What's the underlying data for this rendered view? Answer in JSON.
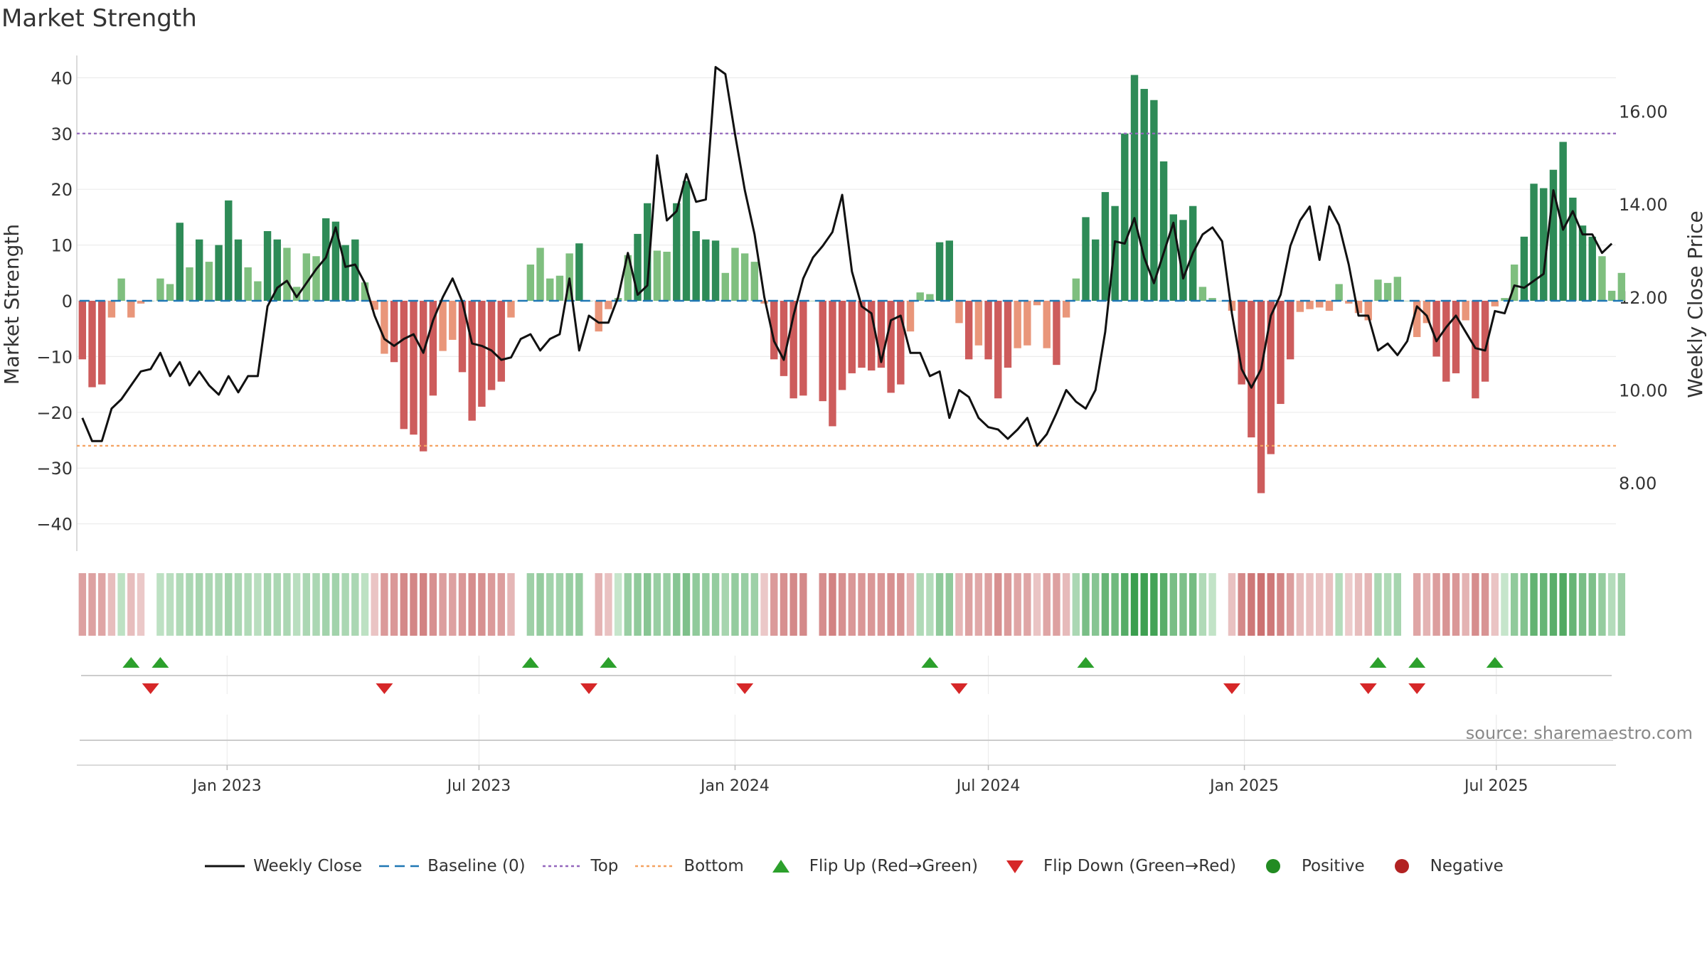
{
  "title": "Market Strength",
  "colors": {
    "green_dark": "#2e8b57",
    "green_light": "#7fbf7f",
    "red_dark": "#cd5c5c",
    "red_light": "#e9967a",
    "close": "#111111",
    "baseline": "#1f77b4",
    "top": "#9467bd",
    "bottom": "#f4a261",
    "flip_up": "#2ca02c",
    "flip_down": "#d62728",
    "positive": "#228b22",
    "negative": "#b22222"
  },
  "chart_data": {
    "type": "bar+line",
    "title": "Market Strength",
    "x_start": "2022-09-19",
    "x_step_days": 7,
    "xlim": [
      "2022-09-15",
      "2025-09-25"
    ],
    "x_ticks": [
      "2023-01-01",
      "2023-07-01",
      "2024-01-01",
      "2024-07-01",
      "2025-01-01",
      "2025-07-01"
    ],
    "x_tick_labels": [
      "Jan 2023",
      "Jul 2023",
      "Jan 2024",
      "Jul 2024",
      "Jan 2025",
      "Jul 2025"
    ],
    "y_left": {
      "label": "Market Strength",
      "lim": [
        -44,
        44
      ],
      "ticks": [
        -40,
        -30,
        -20,
        -10,
        0,
        10,
        20,
        30,
        40
      ]
    },
    "y_right": {
      "label": "Weekly Close Price",
      "lim": [
        6.64,
        17.2
      ],
      "ticks": [
        8,
        10,
        12,
        14,
        16
      ],
      "tick_labels": [
        "8.00",
        "10.00",
        "12.00",
        "14.00",
        "16.00"
      ]
    },
    "top_level": 30,
    "bottom_level": -26,
    "baseline_level": 0,
    "strength": [
      -10.5,
      -15.5,
      -15,
      -3,
      4,
      -3,
      -0.5,
      0,
      4,
      3,
      14,
      6,
      11,
      7,
      10,
      18,
      11,
      6,
      3.5,
      12.5,
      11,
      9.5,
      2.5,
      8.5,
      8,
      14.8,
      14.2,
      10,
      11,
      3.3,
      -1.6,
      -9.5,
      -11,
      -23,
      -24,
      -27,
      -17,
      -9,
      -7,
      -12.8,
      -21.5,
      -19,
      -16,
      -14.5,
      -3,
      0,
      6.5,
      9.5,
      4,
      4.5,
      8.5,
      10.3,
      0,
      -5.5,
      -1.5,
      0.5,
      8.2,
      12,
      17.5,
      9,
      8.8,
      17.5,
      21.5,
      12.5,
      11,
      10.8,
      5,
      9.5,
      8.5,
      7,
      -0.5,
      -10.5,
      -13.5,
      -17.5,
      -17,
      0,
      -18,
      -22.5,
      -16,
      -13,
      -12,
      -12.5,
      -12,
      -16.5,
      -15,
      -5.5,
      1.5,
      1.2,
      10.5,
      10.8,
      -4,
      -10.5,
      -8,
      -10.5,
      -17.5,
      -12,
      -8.5,
      -8,
      -0.8,
      -8.5,
      -11.5,
      -3,
      4,
      15,
      11,
      19.5,
      17,
      30,
      40.5,
      38,
      36,
      25,
      15.5,
      14.5,
      17,
      2.5,
      0.5,
      0,
      -1.8,
      -15,
      -24.5,
      -34.5,
      -27.5,
      -18.5,
      -10.5,
      -2,
      -1.5,
      -1.2,
      -1.8,
      3,
      -0.5,
      -2.2,
      -3.5,
      3.8,
      3.2,
      4.3,
      0,
      -6.5,
      -4,
      -10,
      -14.5,
      -13,
      -3.5,
      -17.5,
      -14.5,
      -1,
      0.5,
      6.5,
      11.5,
      21,
      20.2,
      23.5,
      28.5,
      18.5,
      13.5,
      11.5,
      8,
      1.8,
      5
    ],
    "close": [
      9.4,
      8.9,
      8.9,
      9.6,
      9.8,
      10.1,
      10.4,
      10.45,
      10.8,
      10.3,
      10.6,
      10.1,
      10.4,
      10.1,
      9.9,
      10.3,
      9.95,
      10.3,
      10.3,
      11.8,
      12.2,
      12.35,
      12.0,
      12.3,
      12.6,
      12.85,
      13.5,
      12.65,
      12.7,
      12.3,
      11.6,
      11.1,
      10.95,
      11.1,
      11.2,
      10.8,
      11.5,
      12.0,
      12.4,
      11.9,
      11.0,
      10.95,
      10.85,
      10.65,
      10.7,
      11.1,
      11.2,
      10.85,
      11.1,
      11.2,
      12.4,
      10.85,
      11.6,
      11.45,
      11.45,
      12.0,
      12.95,
      12.05,
      12.25,
      15.05,
      13.65,
      13.85,
      14.65,
      14.05,
      14.1,
      16.95,
      16.8,
      15.5,
      14.3,
      13.35,
      12.0,
      11.05,
      10.65,
      11.6,
      12.4,
      12.85,
      13.1,
      13.4,
      14.2,
      12.55,
      11.8,
      11.65,
      10.6,
      11.5,
      11.6,
      10.8,
      10.8,
      10.3,
      10.4,
      9.4,
      10.0,
      9.85,
      9.4,
      9.2,
      9.15,
      8.95,
      9.15,
      9.4,
      8.8,
      9.05,
      9.5,
      10.0,
      9.75,
      9.6,
      10.0,
      11.25,
      13.2,
      13.15,
      13.7,
      12.85,
      12.3,
      12.95,
      13.6,
      12.4,
      12.95,
      13.35,
      13.5,
      13.2,
      11.65,
      10.45,
      10.05,
      10.45,
      11.6,
      12.05,
      13.1,
      13.65,
      13.95,
      12.8,
      13.95,
      13.55,
      12.7,
      11.6,
      11.6,
      10.85,
      11.0,
      10.75,
      11.05,
      11.8,
      11.6,
      11.05,
      11.35,
      11.6,
      11.25,
      10.9,
      10.85,
      11.7,
      11.65,
      12.25,
      12.2,
      12.35,
      12.5,
      14.3,
      13.45,
      13.85,
      13.35,
      13.35,
      12.95,
      13.15
    ],
    "band_strength": [
      -14,
      -14,
      -13,
      -6,
      5,
      -6,
      -3,
      0,
      5,
      6,
      8,
      9,
      10,
      9,
      9,
      11,
      9,
      8,
      6,
      10,
      9,
      9,
      6,
      9,
      9,
      11,
      11,
      9,
      9,
      5,
      -4,
      -16,
      -17,
      -21,
      -22,
      -23,
      -19,
      -15,
      -14,
      -17,
      -20,
      -19,
      -16,
      -15,
      -8,
      0,
      12,
      14,
      11,
      11,
      13,
      14,
      0,
      -9,
      -5,
      3,
      13,
      15,
      17,
      13,
      13,
      17,
      19,
      15,
      14,
      14,
      10,
      14,
      13,
      12,
      -3,
      -16,
      -19,
      -21,
      -21,
      0,
      -20,
      -23,
      -19,
      -17,
      -17,
      -17,
      -17,
      -19,
      -18,
      -9,
      8,
      7,
      15,
      15,
      -8,
      -14,
      -12,
      -14,
      -19,
      -16,
      -13,
      -13,
      -4,
      -13,
      -14,
      -7,
      9,
      20,
      17,
      24,
      22,
      28,
      34,
      33,
      32,
      27,
      20,
      19,
      21,
      8,
      4,
      0,
      -5,
      -21,
      -26,
      -28,
      -26,
      -22,
      -15,
      -6,
      -5,
      -4,
      -5,
      7,
      -2,
      -6,
      -8,
      9,
      8,
      10,
      0,
      -13,
      -9,
      -15,
      -18,
      -17,
      -9,
      -20,
      -18,
      -4,
      3,
      15,
      18,
      25,
      24,
      27,
      29,
      24,
      20,
      19,
      14,
      7,
      12
    ],
    "flip_up_dates": [
      "2022-10-24",
      "2022-11-14",
      "2023-08-07",
      "2023-10-02",
      "2024-05-20",
      "2024-09-09",
      "2025-04-07",
      "2025-05-05",
      "2025-06-30"
    ],
    "flip_down_dates": [
      "2022-11-07",
      "2023-04-24",
      "2023-09-18",
      "2024-01-08",
      "2024-06-10",
      "2024-12-23",
      "2025-03-31",
      "2025-05-05"
    ],
    "series": [
      {
        "name": "Market Strength",
        "kind": "bar"
      },
      {
        "name": "Weekly Close",
        "kind": "line"
      },
      {
        "name": "Baseline (0)",
        "kind": "dash"
      },
      {
        "name": "Top",
        "kind": "dot"
      },
      {
        "name": "Bottom",
        "kind": "dot"
      }
    ]
  },
  "source_note": "source: sharemaestro.com",
  "legend": [
    {
      "key": "close",
      "label": "Weekly Close"
    },
    {
      "key": "baseline",
      "label": "Baseline (0)"
    },
    {
      "key": "top",
      "label": "Top"
    },
    {
      "key": "bottom",
      "label": "Bottom"
    },
    {
      "key": "flip_up",
      "label": "Flip Up (Red→Green)"
    },
    {
      "key": "flip_down",
      "label": "Flip Down (Green→Red)"
    },
    {
      "key": "positive",
      "label": "Positive"
    },
    {
      "key": "negative",
      "label": "Negative"
    }
  ]
}
